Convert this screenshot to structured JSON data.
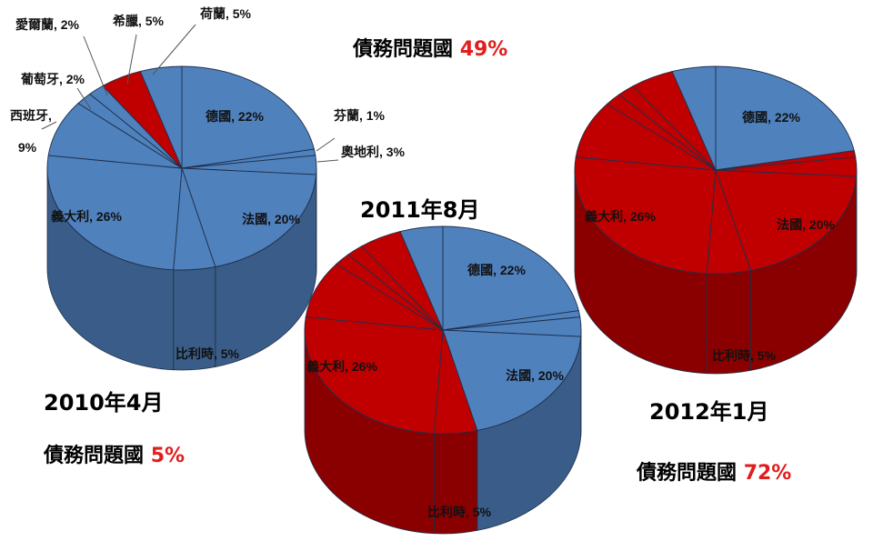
{
  "colors": {
    "safe": "#4f81bd",
    "debt": "#c00000",
    "label_accent": "#e21d1d"
  },
  "chart_data": [
    {
      "type": "pie",
      "title": "2010年4月",
      "note_label": "債務問題國",
      "note_value": "5%",
      "slices": [
        {
          "label": "德國, 22%",
          "value": 22,
          "status": "safe"
        },
        {
          "label": "芬蘭, 1%",
          "value": 1,
          "status": "safe"
        },
        {
          "label": "奧地利, 3%",
          "value": 3,
          "status": "safe"
        },
        {
          "label": "法國, 20%",
          "value": 20,
          "status": "safe"
        },
        {
          "label": "比利時, 5%",
          "value": 5,
          "status": "safe"
        },
        {
          "label": "義大利, 26%",
          "value": 26,
          "status": "safe"
        },
        {
          "label": "9%",
          "value": 9,
          "status": "safe"
        },
        {
          "label": "葡萄牙, 2%",
          "value": 2,
          "status": "safe"
        },
        {
          "label": "愛爾蘭, 2%",
          "value": 2,
          "status": "safe"
        },
        {
          "label": "希臘, 5%",
          "value": 5,
          "status": "debt"
        },
        {
          "label": "荷蘭, 5%",
          "value": 5,
          "status": "safe"
        }
      ],
      "extra_labels": [
        "西班牙,"
      ]
    },
    {
      "type": "pie",
      "title": "2011年8月",
      "note_label": "債務問題國",
      "note_value": "49%",
      "slices": [
        {
          "label": "德國, 22%",
          "value": 22,
          "status": "safe"
        },
        {
          "label": "",
          "value": 1,
          "status": "safe"
        },
        {
          "label": "",
          "value": 3,
          "status": "safe"
        },
        {
          "label": "法國, 20%",
          "value": 20,
          "status": "safe"
        },
        {
          "label": "比利時, 5%",
          "value": 5,
          "status": "debt"
        },
        {
          "label": "義大利, 26%",
          "value": 26,
          "status": "debt"
        },
        {
          "label": "",
          "value": 9,
          "status": "debt"
        },
        {
          "label": "",
          "value": 2,
          "status": "debt"
        },
        {
          "label": "",
          "value": 2,
          "status": "debt"
        },
        {
          "label": "",
          "value": 5,
          "status": "debt"
        },
        {
          "label": "",
          "value": 5,
          "status": "safe"
        }
      ]
    },
    {
      "type": "pie",
      "title": "2012年1月",
      "note_label": "債務問題國",
      "note_value": "72%",
      "slices": [
        {
          "label": "德國, 22%",
          "value": 22,
          "status": "safe"
        },
        {
          "label": "",
          "value": 1,
          "status": "debt"
        },
        {
          "label": "",
          "value": 3,
          "status": "debt"
        },
        {
          "label": "法國, 20%",
          "value": 20,
          "status": "debt"
        },
        {
          "label": "比利時, 5%",
          "value": 5,
          "status": "debt"
        },
        {
          "label": "義大利, 26%",
          "value": 26,
          "status": "debt"
        },
        {
          "label": "",
          "value": 9,
          "status": "debt"
        },
        {
          "label": "",
          "value": 2,
          "status": "debt"
        },
        {
          "label": "",
          "value": 2,
          "status": "debt"
        },
        {
          "label": "",
          "value": 5,
          "status": "debt"
        },
        {
          "label": "",
          "value": 5,
          "status": "safe"
        }
      ]
    }
  ]
}
